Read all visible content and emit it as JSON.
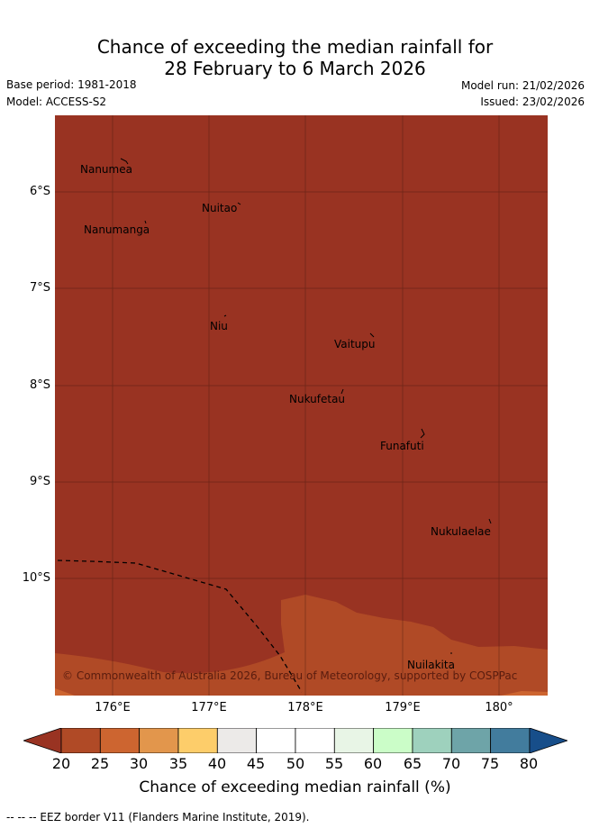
{
  "title": {
    "line1": "Chance of exceeding the median rainfall for",
    "line2": "28 February to 6 March 2026"
  },
  "meta": {
    "base_period": "Base period: 1981-2018",
    "model": "Model: ACCESS-S2",
    "model_run": "Model run: 21/02/2026",
    "issued": "Issued: 23/02/2026"
  },
  "map": {
    "fill_color_low": "#993322",
    "fill_color_mid": "#b04a26",
    "latitude_labels": [
      "6°S",
      "7°S",
      "8°S",
      "9°S",
      "10°S"
    ],
    "longitude_labels": [
      "176°E",
      "177°E",
      "178°E",
      "179°E",
      "180°"
    ],
    "islands": [
      "Nanumea",
      "Nuitao",
      "Nanumanga",
      "Niu",
      "Vaitupu",
      "Nukufetau",
      "Funafuti",
      "Nukulaelae",
      "Nuilakita"
    ],
    "copyright": "© Commonwealth of Australia 2026, Bureau of Meteorology, supported by COSPPac"
  },
  "colorbar": {
    "ticks": [
      "20",
      "25",
      "30",
      "35",
      "40",
      "45",
      "50",
      "55",
      "60",
      "65",
      "70",
      "75",
      "80"
    ],
    "colors": [
      "#993322",
      "#b04a26",
      "#cd6530",
      "#e2964c",
      "#fdcd6a",
      "#eceae8",
      "#ffffff",
      "#ffffff",
      "#e8f5e6",
      "#cbfdc8",
      "#9ed1bd",
      "#6ea4a8",
      "#427c9d",
      "#174e8a"
    ],
    "label": "Chance of exceeding median rainfall (%)"
  },
  "footnote": "-- -- -- EEZ border V11 (Flanders Marine Institute, 2019)."
}
